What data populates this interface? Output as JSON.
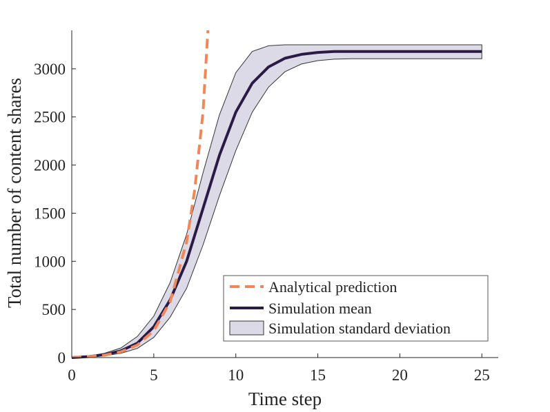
{
  "chart_data": {
    "type": "line",
    "title": "",
    "xlabel": "Time step",
    "ylabel": "Total number of content shares",
    "xlim": [
      0,
      26
    ],
    "ylim": [
      0,
      3400
    ],
    "xticks": [
      0,
      5,
      10,
      15,
      20,
      25
    ],
    "yticks": [
      0,
      500,
      1000,
      1500,
      2000,
      2500,
      3000
    ],
    "grid": false,
    "legend_position": "bottom-right",
    "x": [
      0,
      1,
      2,
      3,
      4,
      5,
      6,
      7,
      8,
      9,
      10,
      11,
      12,
      13,
      14,
      15,
      16,
      17,
      18,
      19,
      20,
      21,
      22,
      23,
      24,
      25
    ],
    "series": [
      {
        "name": "Simulation mean",
        "type": "line",
        "color": "#2b1a45",
        "values": [
          0,
          10,
          30,
          70,
          150,
          320,
          600,
          1000,
          1550,
          2100,
          2550,
          2850,
          3020,
          3110,
          3150,
          3170,
          3180,
          3180,
          3180,
          3180,
          3180,
          3180,
          3180,
          3180,
          3180,
          3180
        ]
      },
      {
        "name": "Simulation standard deviation",
        "type": "band",
        "color": "#dcdae6",
        "upper": [
          5,
          15,
          45,
          100,
          220,
          430,
          780,
          1280,
          1920,
          2520,
          2960,
          3180,
          3240,
          3250,
          3250,
          3250,
          3250,
          3250,
          3250,
          3250,
          3250,
          3250,
          3250,
          3250,
          3250,
          3250
        ],
        "lower": [
          0,
          5,
          20,
          45,
          95,
          210,
          420,
          720,
          1170,
          1680,
          2150,
          2550,
          2810,
          2970,
          3050,
          3085,
          3100,
          3105,
          3105,
          3105,
          3105,
          3105,
          3105,
          3105,
          3105,
          3105
        ]
      },
      {
        "name": "Analytical prediction",
        "type": "dashed-line",
        "color": "#f0875a",
        "x": [
          0,
          1,
          2,
          3,
          4,
          5,
          6,
          7,
          7.5,
          8,
          8.3
        ],
        "values": [
          0,
          10,
          25,
          60,
          130,
          280,
          580,
          1200,
          1750,
          2550,
          3400
        ]
      }
    ],
    "legend": [
      {
        "label": "Analytical prediction",
        "style": "dashed",
        "color": "#f0875a"
      },
      {
        "label": "Simulation mean",
        "style": "line",
        "color": "#2b1a45"
      },
      {
        "label": "Simulation standard deviation",
        "style": "patch",
        "color": "#dcdae6"
      }
    ]
  }
}
